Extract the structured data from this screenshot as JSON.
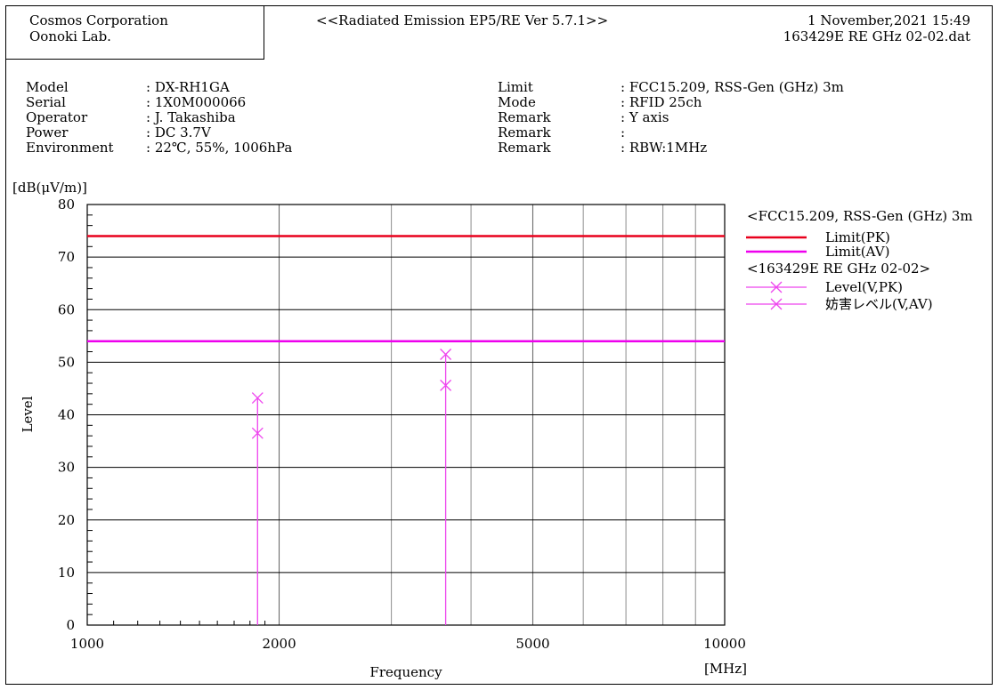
{
  "header": {
    "company_line1": "Cosmos Corporation",
    "company_line2": "Oonoki Lab.",
    "program_title": "<<Radiated Emission EP5/RE Ver 5.7.1>>",
    "date": "1 November,2021 15:49",
    "file_name": "163429E RE GHz 02-02.dat"
  },
  "info_left": [
    {
      "key": "Model",
      "value": ": DX-RH1GA"
    },
    {
      "key": "Serial",
      "value": ": 1X0M000066"
    },
    {
      "key": "Operator",
      "value": ": J. Takashiba"
    },
    {
      "key": "Power",
      "value": ": DC 3.7V"
    },
    {
      "key": "Environment",
      "value": ": 22℃, 55%, 1006hPa"
    }
  ],
  "info_right": [
    {
      "key": "Limit",
      "value": ": FCC15.209, RSS-Gen (GHz) 3m"
    },
    {
      "key": "Mode",
      "value": ": RFID 25ch"
    },
    {
      "key": "Remark",
      "value": ": Y axis"
    },
    {
      "key": "Remark",
      "value": ":"
    },
    {
      "key": "Remark",
      "value": ": RBW:1MHz"
    }
  ],
  "chart_data": {
    "type": "line",
    "x_scale": "log",
    "xlim": [
      1000,
      10000
    ],
    "ylim": [
      0,
      80
    ],
    "grid": true,
    "xlabel": "Frequency",
    "xunit": "[MHz]",
    "ylabel": "Level",
    "yunit": "[dB(μV/m)]",
    "x_tick_labels": [
      "1000",
      "2000",
      "5000",
      "10000"
    ],
    "x_ticks": [
      1000,
      2000,
      5000,
      10000
    ],
    "x_minor_grid": [
      3000,
      4000,
      6000,
      7000,
      8000,
      9000
    ],
    "y_ticks": [
      0,
      10,
      20,
      30,
      40,
      50,
      60,
      70,
      80
    ],
    "legend_position": "right",
    "legend": {
      "limit_group": "<FCC15.209, RSS-Gen (GHz) 3m",
      "data_group": "<163429E RE GHz 02-02>"
    },
    "limits": [
      {
        "name": "Limit(PK)",
        "value": 74,
        "color": "#e8001c"
      },
      {
        "name": "Limit(AV)",
        "value": 54,
        "color": "#ee00ee"
      }
    ],
    "series": [
      {
        "name": "Level(V,PK)",
        "color": "#ee44ee",
        "points": [
          [
            1850,
            43.2
          ],
          [
            3650,
            51.5
          ]
        ]
      },
      {
        "name": "妨害レベル(V,AV)",
        "color": "#ee44ee",
        "points": [
          [
            1850,
            36.5
          ],
          [
            3650,
            45.6
          ]
        ]
      }
    ],
    "stems": [
      1850,
      3650
    ]
  }
}
